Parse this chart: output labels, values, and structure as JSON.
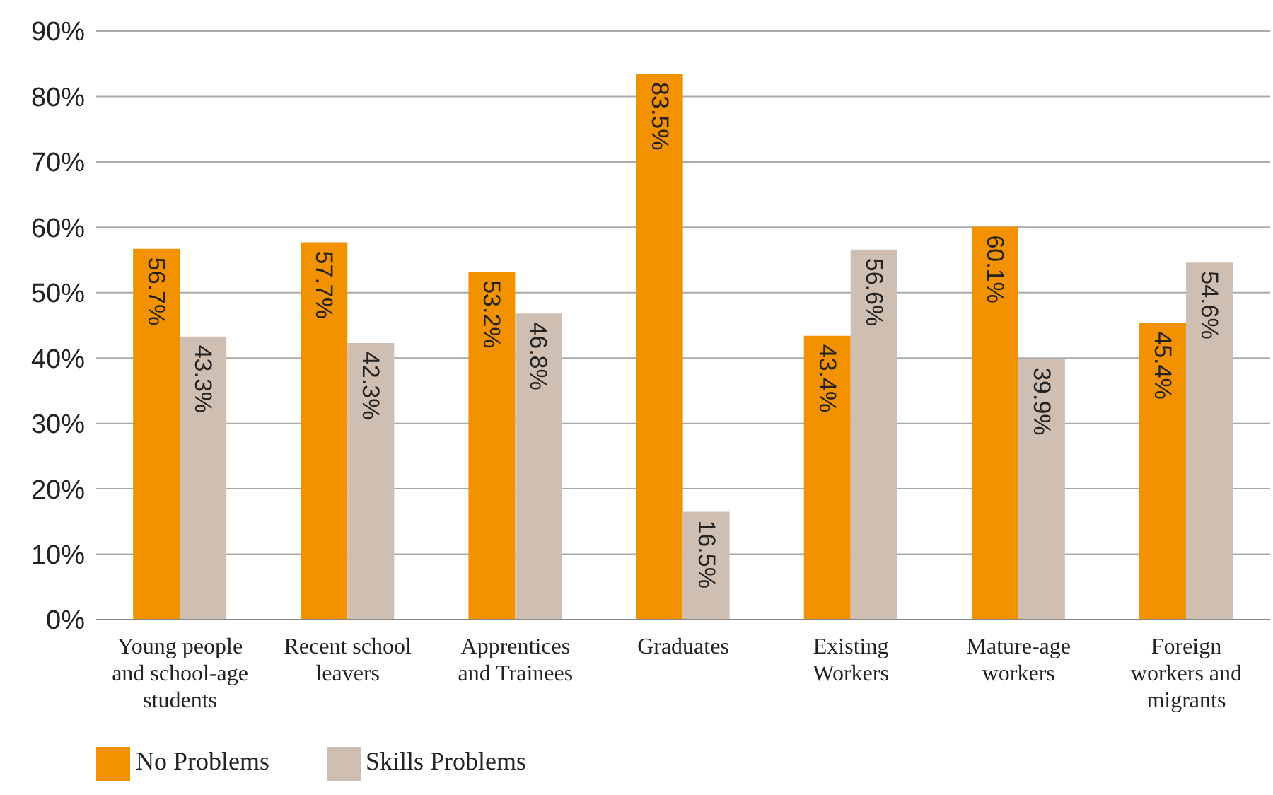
{
  "chart_data": {
    "type": "bar",
    "categories": [
      "Young people and school-age students",
      "Recent school leavers",
      "Apprentices and Trainees",
      "Graduates",
      "Existing Workers",
      "Mature-age workers",
      "Foreign workers and migrants"
    ],
    "series": [
      {
        "name": "No Problems",
        "color": "#f39200",
        "values": [
          56.7,
          57.7,
          53.2,
          83.5,
          43.4,
          60.1,
          45.4
        ],
        "value_labels": [
          "56.7%",
          "57.7%",
          "53.2%",
          "83.5%",
          "43.4%",
          "60.1%",
          "45.4%"
        ]
      },
      {
        "name": "Skills Problems",
        "color": "#cfbfb2",
        "values": [
          43.3,
          42.3,
          46.8,
          16.5,
          56.6,
          39.9,
          54.6
        ],
        "value_labels": [
          "43.3%",
          "42.3%",
          "46.8%",
          "16.5%",
          "56.6%",
          "39.9%",
          "54.6%"
        ]
      }
    ],
    "ylim": [
      0,
      90
    ],
    "yticks": [
      {
        "value": 0,
        "label": "0%"
      },
      {
        "value": 10,
        "label": "10%"
      },
      {
        "value": 20,
        "label": "20%"
      },
      {
        "value": 30,
        "label": "30%"
      },
      {
        "value": 40,
        "label": "40%"
      },
      {
        "value": 50,
        "label": "50%"
      },
      {
        "value": 60,
        "label": "60%"
      },
      {
        "value": 70,
        "label": "70%"
      },
      {
        "value": 80,
        "label": "80%"
      },
      {
        "value": 90,
        "label": "90%"
      }
    ],
    "grid": "y",
    "legend": "bottom left"
  }
}
